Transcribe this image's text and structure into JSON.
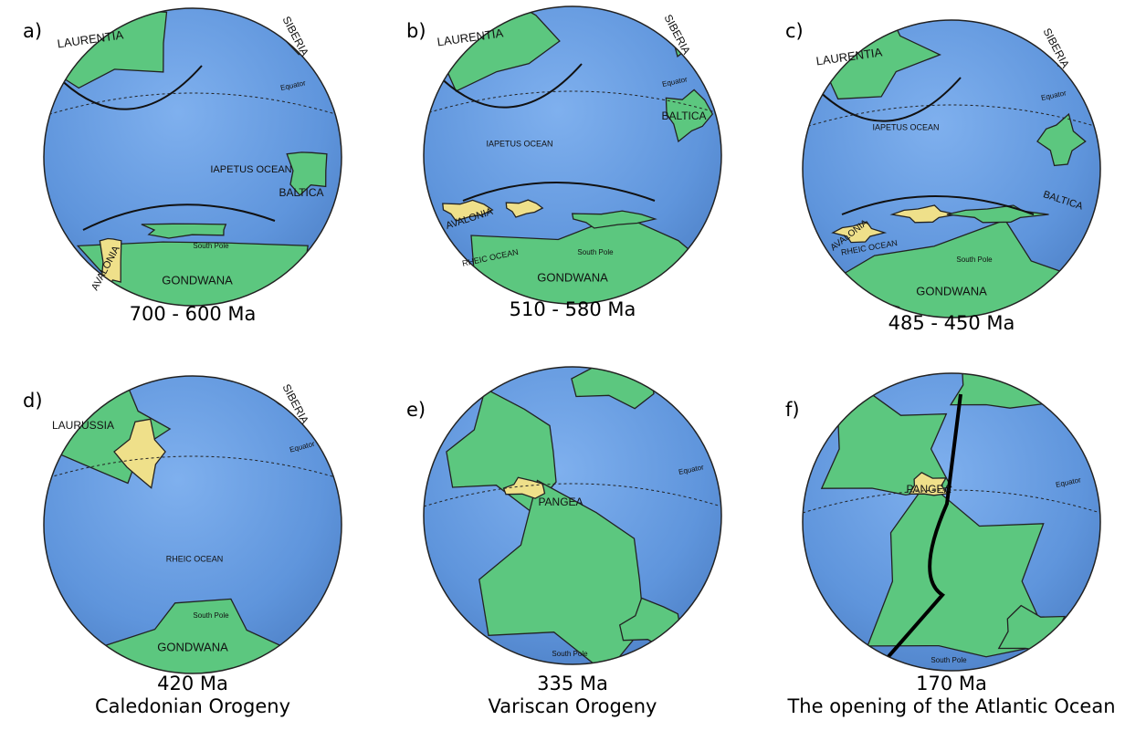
{
  "panels": [
    {
      "letter": "a)",
      "caption": [
        "700 - 600 Ma"
      ],
      "labels": [
        "LAURENTIA",
        "SIBERIA",
        "Equator",
        "IAPETUS OCEAN",
        "BALTICA",
        "AVALONIA",
        "South Pole",
        "GONDWANA"
      ]
    },
    {
      "letter": "b)",
      "caption": [
        "510 - 580 Ma"
      ],
      "labels": [
        "LAURENTIA",
        "SIBERIA",
        "Equator",
        "IAPETUS OCEAN",
        "BALTICA",
        "AVALONIA",
        "RHEIC OCEAN",
        "South Pole",
        "GONDWANA"
      ]
    },
    {
      "letter": "c)",
      "caption": [
        "485 - 450 Ma"
      ],
      "labels": [
        "LAURENTIA",
        "SIBERIA",
        "Equator",
        "IAPETUS OCEAN",
        "BALTICA",
        "AVALONIA",
        "RHEIC OCEAN",
        "South Pole",
        "GONDWANA"
      ]
    },
    {
      "letter": "d)",
      "caption": [
        "420 Ma",
        "Caledonian Orogeny"
      ],
      "labels": [
        "LAURUSSIA",
        "SIBERIA",
        "Equator",
        "RHEIC OCEAN",
        "South Pole",
        "GONDWANA"
      ]
    },
    {
      "letter": "e)",
      "caption": [
        "335 Ma",
        "Variscan Orogeny"
      ],
      "labels": [
        "PANGEA",
        "Equator",
        "South Pole"
      ]
    },
    {
      "letter": "f)",
      "caption": [
        "170 Ma",
        "The opening of the Atlantic Ocean"
      ],
      "labels": [
        "PANGEA",
        "Equator",
        "South Pole"
      ]
    }
  ]
}
